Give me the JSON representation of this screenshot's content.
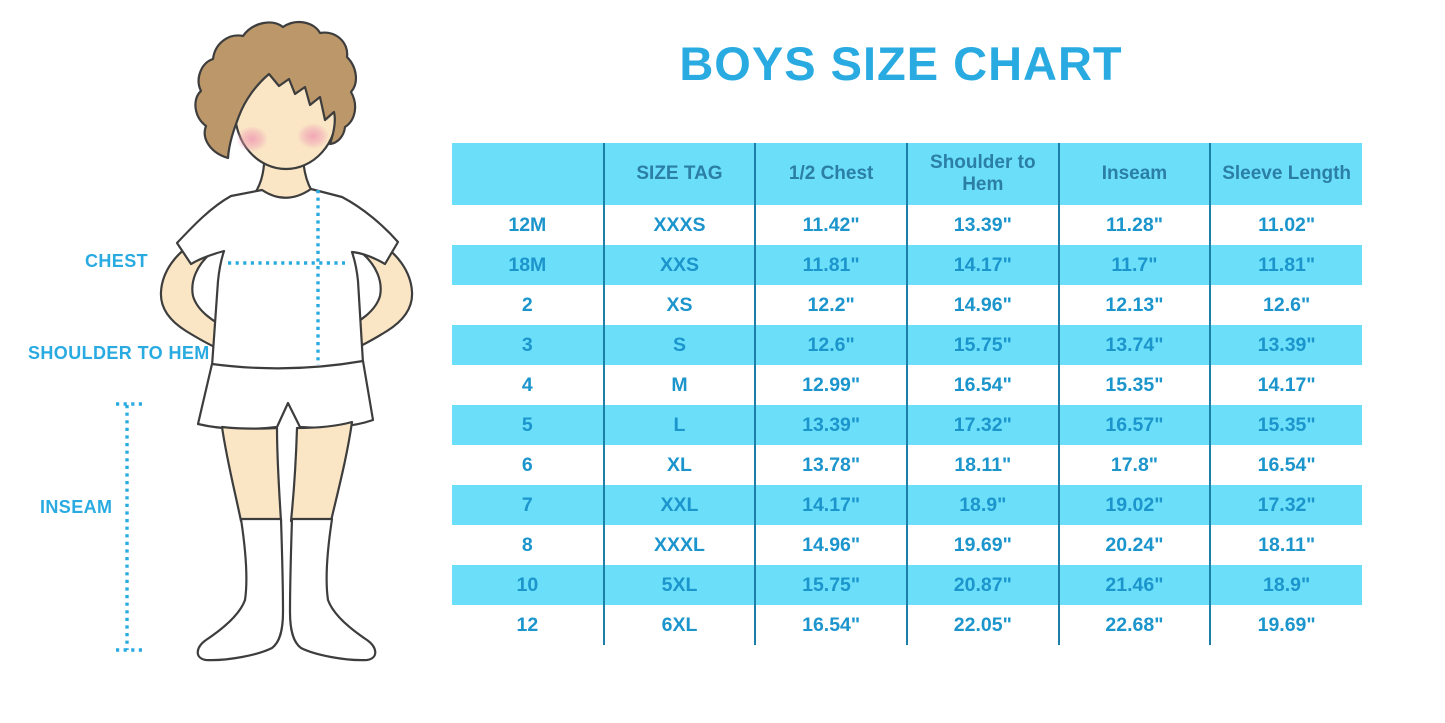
{
  "page": {
    "title": "BOYS SIZE CHART"
  },
  "figure": {
    "labels": {
      "chest": "CHEST",
      "shoulder_to_hem": "SHOULDER TO HEM",
      "inseam": "INSEAM"
    }
  },
  "colors": {
    "accent_blue": "#29ABE2",
    "table_fill": "#6BDFF9",
    "grid_line": "#1C7FA8",
    "header_text": "#2B7EA6",
    "cell_text": "#1B95CC",
    "skin": "#FAE6C5",
    "hair": "#BC9769",
    "blush": "#F0A0B4"
  },
  "chart_data": {
    "type": "table",
    "title": "BOYS SIZE CHART",
    "columns": [
      "",
      "SIZE TAG",
      "1/2 Chest",
      "Shoulder to Hem",
      "Inseam",
      "Sleeve Length"
    ],
    "rows": [
      [
        "12M",
        "XXXS",
        "11.42\"",
        "13.39\"",
        "11.28\"",
        "11.02\""
      ],
      [
        "18M",
        "XXS",
        "11.81\"",
        "14.17\"",
        "11.7\"",
        "11.81\""
      ],
      [
        "2",
        "XS",
        "12.2\"",
        "14.96\"",
        "12.13\"",
        "12.6\""
      ],
      [
        "3",
        "S",
        "12.6\"",
        "15.75\"",
        "13.74\"",
        "13.39\""
      ],
      [
        "4",
        "M",
        "12.99\"",
        "16.54\"",
        "15.35\"",
        "14.17\""
      ],
      [
        "5",
        "L",
        "13.39\"",
        "17.32\"",
        "16.57\"",
        "15.35\""
      ],
      [
        "6",
        "XL",
        "13.78\"",
        "18.11\"",
        "17.8\"",
        "16.54\""
      ],
      [
        "7",
        "XXL",
        "14.17\"",
        "18.9\"",
        "19.02\"",
        "17.32\""
      ],
      [
        "8",
        "XXXL",
        "14.96\"",
        "19.69\"",
        "20.24\"",
        "18.11\""
      ],
      [
        "10",
        "5XL",
        "15.75\"",
        "20.87\"",
        "21.46\"",
        "18.9\""
      ],
      [
        "12",
        "6XL",
        "16.54\"",
        "22.05\"",
        "22.68\"",
        "19.69\""
      ]
    ],
    "row_striping": [
      "white",
      "blue",
      "white",
      "blue",
      "white",
      "blue",
      "white",
      "blue",
      "white",
      "blue",
      "white"
    ],
    "grid": "vertical-lines-only",
    "legend": "none"
  }
}
